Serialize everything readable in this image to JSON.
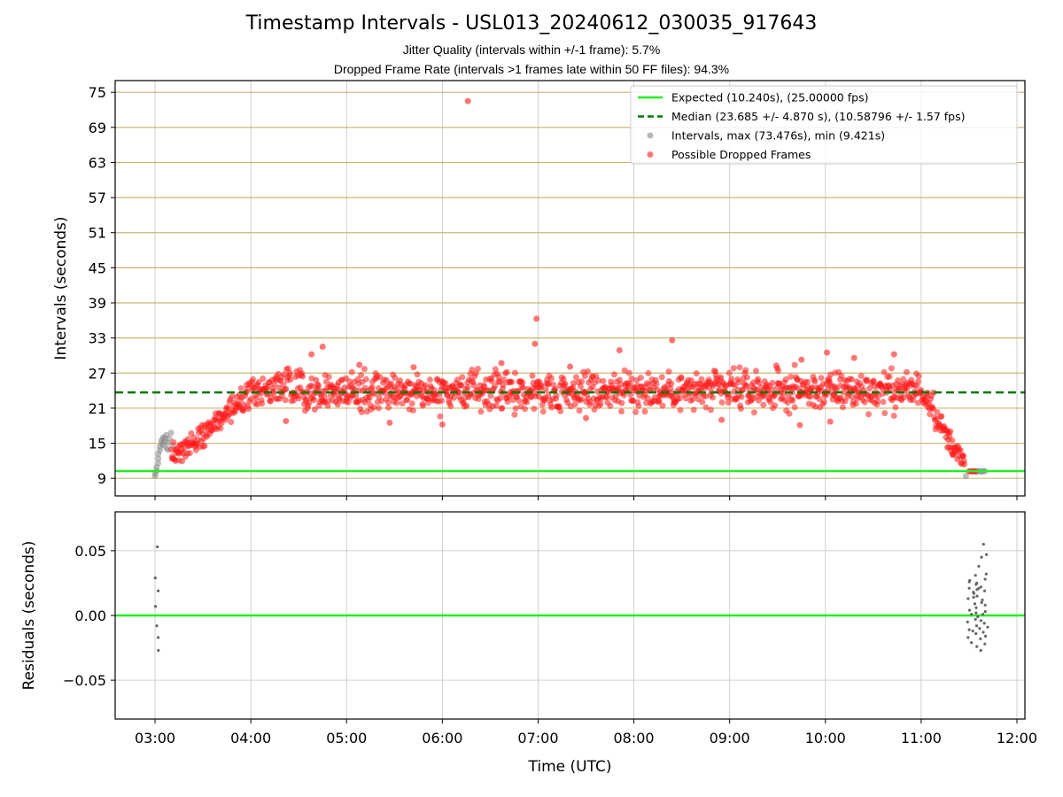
{
  "title": "Timestamp Intervals - USL013_20240612_030035_917643",
  "subtitle_1": "Jitter Quality (intervals within +/-1 frame): 5.7%",
  "subtitle_2": "Dropped Frame Rate (intervals >1 frames late within 50 FF files): 94.3%",
  "colors": {
    "expected": "#22ee22",
    "median": "#007700",
    "intervals": "#888888",
    "dropped": "#ff1a1a",
    "hgrid_top": "#c8b870",
    "grid": "#cfcfcf"
  },
  "chart_data": [
    {
      "type": "scatter",
      "panel": "top",
      "ylabel": "Intervals (seconds)",
      "xlim": [
        "02:35",
        "12:05"
      ],
      "ylim": [
        6,
        77
      ],
      "yticks": [
        9,
        15,
        21,
        27,
        33,
        39,
        45,
        51,
        57,
        63,
        69,
        75
      ],
      "xticks": [
        "03:00",
        "04:00",
        "05:00",
        "06:00",
        "07:00",
        "08:00",
        "09:00",
        "10:00",
        "11:00",
        "12:00"
      ],
      "grid": true,
      "legend_position": "top-right",
      "legend": [
        "Expected (10.240s), (25.00000 fps)",
        "Median (23.685 +/- 4.870 s), (10.58796 +/- 1.57 fps)",
        "Intervals, max (73.476s), min (9.421s)",
        "Possible Dropped Frames"
      ],
      "expected_line": 10.24,
      "median_line": 23.685,
      "interval_max": 73.476,
      "interval_min": 9.421,
      "series": [
        {
          "name": "Intervals, max (73.476s), min (9.421s)",
          "points": [
            [
              "03:00",
              9.4
            ],
            [
              "03:00",
              9.8
            ],
            [
              "03:01",
              10.3
            ],
            [
              "03:01",
              10.9
            ],
            [
              "03:02",
              11.6
            ],
            [
              "03:02",
              12.4
            ],
            [
              "03:02",
              13.2
            ],
            [
              "03:03",
              13.8
            ],
            [
              "03:03",
              14.4
            ],
            [
              "03:04",
              15.0
            ],
            [
              "03:04",
              15.5
            ],
            [
              "03:05",
              16.0
            ],
            [
              "03:05",
              14.7
            ],
            [
              "03:06",
              15.3
            ],
            [
              "03:06",
              15.9
            ],
            [
              "03:07",
              14.2
            ],
            [
              "03:07",
              16.4
            ],
            [
              "03:08",
              15.1
            ],
            [
              "03:08",
              13.9
            ],
            [
              "03:09",
              15.8
            ],
            [
              "03:10",
              16.8
            ],
            [
              "03:11",
              14.6
            ],
            [
              "11:28",
              9.4
            ],
            [
              "11:34",
              10.2
            ],
            [
              "11:35",
              10.1
            ],
            [
              "11:36",
              10.3
            ],
            [
              "11:37",
              10.2
            ],
            [
              "11:38",
              10.1
            ],
            [
              "11:39",
              10.3
            ],
            [
              "11:40",
              10.2
            ]
          ]
        },
        {
          "name": "Possible Dropped Frames",
          "segments": [
            {
              "from": "03:10",
              "to": "03:58",
              "start": 12.5,
              "end": 23.0,
              "spread": 1.6
            },
            {
              "from": "03:58",
              "to": "04:25",
              "start": 23.0,
              "end": 25.5,
              "spread": 2.0
            },
            {
              "from": "04:25",
              "to": "11:00",
              "start": 24.0,
              "end": 24.0,
              "spread": 2.4
            },
            {
              "from": "11:00",
              "to": "11:08",
              "start": 24.0,
              "end": 22.0,
              "spread": 2.0
            },
            {
              "from": "11:08",
              "to": "11:27",
              "start": 20.0,
              "end": 11.5,
              "spread": 1.4
            }
          ],
          "points": [
            [
              "04:45",
              31.5
            ],
            [
              "06:16",
              73.5
            ],
            [
              "06:59",
              36.3
            ],
            [
              "06:58",
              32.0
            ],
            [
              "07:51",
              30.9
            ],
            [
              "08:24",
              32.6
            ],
            [
              "04:38",
              30.2
            ],
            [
              "05:08",
              28.4
            ],
            [
              "05:42",
              28.0
            ],
            [
              "06:37",
              28.7
            ],
            [
              "07:20",
              28.1
            ],
            [
              "09:45",
              29.3
            ],
            [
              "10:01",
              30.5
            ],
            [
              "10:18",
              29.6
            ],
            [
              "10:43",
              30.2
            ],
            [
              "04:22",
              18.8
            ],
            [
              "05:27",
              18.5
            ],
            [
              "06:00",
              18.2
            ],
            [
              "07:30",
              19.3
            ],
            [
              "08:55",
              19.0
            ],
            [
              "09:44",
              18.1
            ],
            [
              "10:03",
              18.7
            ],
            [
              "11:17",
              15.6
            ],
            [
              "11:20",
              13.0
            ],
            [
              "11:27",
              11.4
            ],
            [
              "11:30",
              10.2
            ],
            [
              "11:31",
              10.2
            ],
            [
              "11:32",
              10.2
            ],
            [
              "11:33",
              10.2
            ],
            [
              "11:34",
              10.2
            ]
          ]
        }
      ]
    },
    {
      "type": "scatter",
      "panel": "bottom",
      "xlabel": "Time (UTC)",
      "ylabel": "Residuals (seconds)",
      "xlim": [
        "02:35",
        "12:05"
      ],
      "ylim": [
        -0.08,
        0.08
      ],
      "yticks": [
        "0.05",
        "0.00",
        "−0.05"
      ],
      "ytick_values": [
        0.05,
        0.0,
        -0.05
      ],
      "xticks": [
        "03:00",
        "04:00",
        "05:00",
        "06:00",
        "07:00",
        "08:00",
        "09:00",
        "10:00",
        "11:00",
        "12:00"
      ],
      "grid": true,
      "zero_line": 0.0,
      "series": [
        {
          "name": "Residuals",
          "points": [
            [
              "03:01",
              0.053
            ],
            [
              "03:01",
              0.029
            ],
            [
              "03:01",
              0.019
            ],
            [
              "03:01",
              0.007
            ],
            [
              "03:01",
              -0.008
            ],
            [
              "03:01",
              -0.017
            ],
            [
              "03:01",
              -0.027
            ],
            [
              "11:30",
              0.026
            ],
            [
              "11:30",
              0.013
            ],
            [
              "11:30",
              -0.005
            ],
            [
              "11:31",
              0.021
            ],
            [
              "11:31",
              0.004
            ],
            [
              "11:31",
              -0.011
            ],
            [
              "11:32",
              0.018
            ],
            [
              "11:32",
              0.001
            ],
            [
              "11:32",
              -0.021
            ],
            [
              "11:33",
              0.031
            ],
            [
              "11:33",
              0.009
            ],
            [
              "11:33",
              -0.003
            ],
            [
              "11:34",
              0.024
            ],
            [
              "11:34",
              -0.014
            ],
            [
              "11:34",
              -0.024
            ],
            [
              "11:35",
              0.02
            ],
            [
              "11:35",
              0.006
            ],
            [
              "11:35",
              -0.008
            ],
            [
              "11:36",
              0.038
            ],
            [
              "11:36",
              0.015
            ],
            [
              "11:36",
              -0.001
            ],
            [
              "11:37",
              0.022
            ],
            [
              "11:37",
              -0.004
            ],
            [
              "11:37",
              -0.018
            ],
            [
              "11:38",
              0.045
            ],
            [
              "11:38",
              0.012
            ],
            [
              "11:38",
              -0.027
            ],
            [
              "11:39",
              0.055
            ],
            [
              "11:39",
              0.028
            ],
            [
              "11:39",
              -0.006
            ],
            [
              "11:40",
              0.047
            ],
            [
              "11:40",
              0.019
            ],
            [
              "11:40",
              -0.016
            ],
            [
              "11:41",
              0.032
            ],
            [
              "11:41",
              0.003
            ],
            [
              "11:41",
              -0.022
            ],
            [
              "11:31",
              0.027
            ],
            [
              "11:32",
              0.014
            ],
            [
              "11:33",
              -0.012
            ],
            [
              "11:35",
              0.025
            ],
            [
              "11:36",
              -0.01
            ],
            [
              "11:38",
              0.001
            ],
            [
              "11:39",
              -0.013
            ],
            [
              "11:40",
              0.008
            ],
            [
              "11:37",
              0.01
            ],
            [
              "11:34",
              0.002
            ],
            [
              "11:30",
              -0.017
            ],
            [
              "11:41",
              -0.009
            ],
            [
              "11:36",
              0.021
            ],
            [
              "11:33",
              0.017
            ]
          ]
        }
      ]
    }
  ]
}
